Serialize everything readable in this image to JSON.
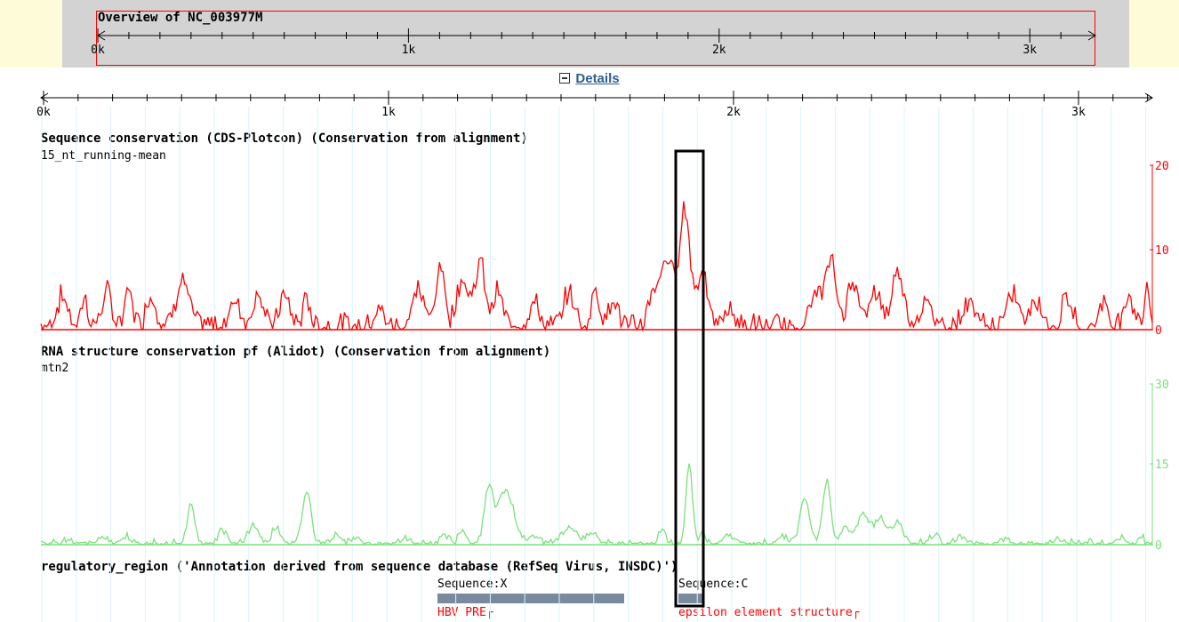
{
  "overview": {
    "title": "Overview of NC_003977M",
    "ticks": [
      "0k",
      "1k",
      "2k",
      "3k"
    ]
  },
  "details": {
    "label": "Details"
  },
  "ruler": {
    "ticks": [
      "0k",
      "1k",
      "2k",
      "3k"
    ]
  },
  "tracks": {
    "cds": {
      "title": "Sequence conservation (CDS-Plotcon) (Conservation from alignment)",
      "subtitle": "15_nt_running-mean",
      "scale": [
        "20",
        "10",
        "0"
      ],
      "color": "#ff0000"
    },
    "rna": {
      "title": "RNA structure conservation pf (Alidot) (Conservation from alignment)",
      "subtitle": "mtn2",
      "scale": [
        "30",
        "15",
        "0"
      ],
      "color": "#7be07b"
    },
    "regulatory": {
      "title": "regulatory_region ('Annotation derived from sequence database (RefSeq Virus, INSDC)')",
      "features": [
        {
          "label": "Sequence:X",
          "name": "HBV PRE"
        },
        {
          "label": "Sequence:C",
          "name": "epsilon element structure"
        }
      ]
    }
  },
  "colors": {
    "overview_bg": "#fdfbd8",
    "overview_gray": "#d3d3d3",
    "highlight_box": "#000000",
    "grid": "#d8f4fb",
    "feature_bar": "#7a8a9e",
    "link": "#2c5e8e"
  },
  "icons": {
    "details_toggle": "minus-box-icon"
  }
}
